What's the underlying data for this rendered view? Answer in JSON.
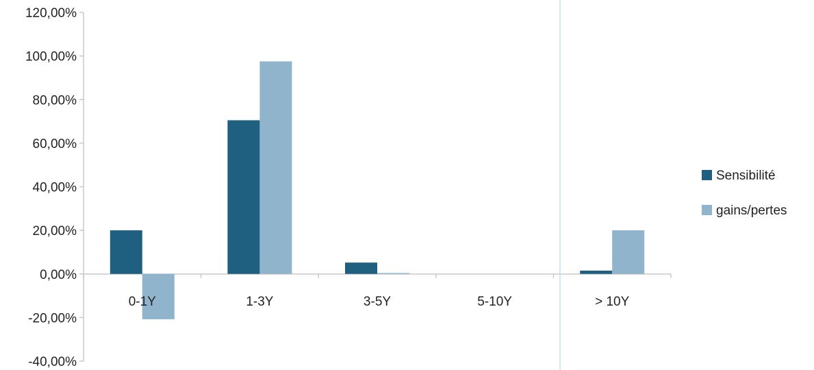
{
  "chart_data": {
    "type": "bar",
    "title": "",
    "xlabel": "",
    "ylabel": "",
    "categories": [
      "0-1Y",
      "1-3Y",
      "3-5Y",
      "5-10Y",
      "> 10Y"
    ],
    "series": [
      {
        "name": "Sensibilité",
        "values": [
          20.0,
          70.5,
          5.2,
          0.0,
          1.5
        ]
      },
      {
        "name": "gains/pertes",
        "values": [
          -20.8,
          97.5,
          0.4,
          0.0,
          20.0
        ]
      }
    ],
    "ylim": [
      -40,
      120
    ],
    "yticks": [
      120,
      100,
      80,
      60,
      40,
      20,
      0,
      -20,
      -40
    ],
    "ytick_labels": [
      "120,00%",
      "100,00%",
      "80,00%",
      "60,00%",
      "40,00%",
      "20,00%",
      "0,00%",
      "-20,00%",
      "-40,00%"
    ],
    "grid": false,
    "legend_position": "right",
    "colors": [
      "#1f5f80",
      "#8fb4cc"
    ]
  }
}
